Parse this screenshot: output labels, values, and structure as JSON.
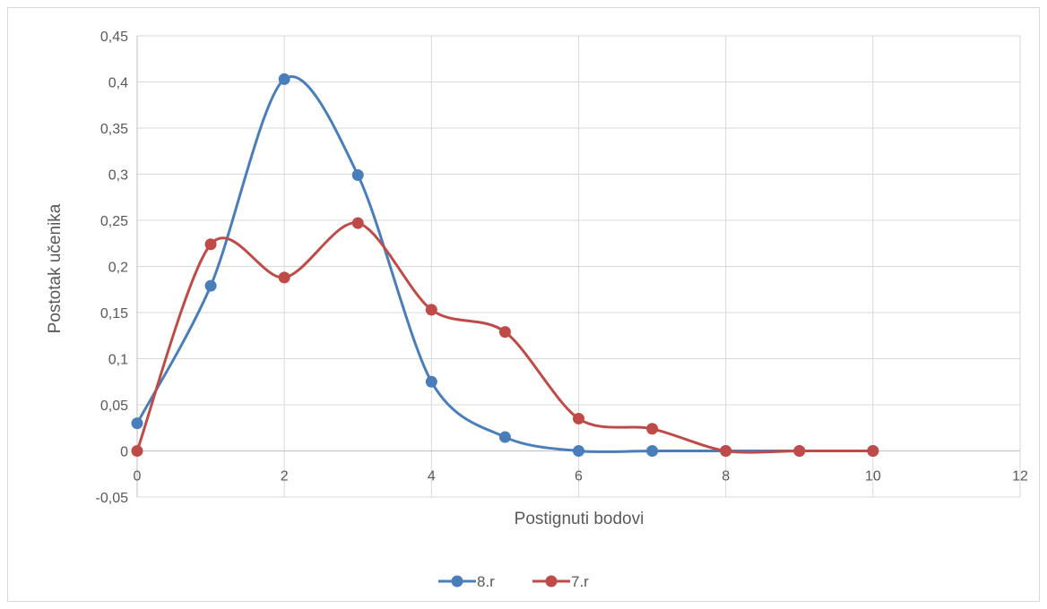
{
  "chart_data": {
    "type": "scatter",
    "subtype": "smooth-line-with-markers",
    "title": "",
    "xlabel": "Postignuti bodovi",
    "ylabel": "Postotak učenika",
    "xlim": [
      0,
      12
    ],
    "ylim": [
      -0.05,
      0.45
    ],
    "x_ticks": [
      0,
      2,
      4,
      6,
      8,
      10,
      12
    ],
    "y_ticks": [
      -0.05,
      0,
      0.05,
      0.1,
      0.15,
      0.2,
      0.25,
      0.3,
      0.35,
      0.4,
      0.45
    ],
    "x_tick_labels": [
      "0",
      "2",
      "4",
      "6",
      "8",
      "10",
      "12"
    ],
    "y_tick_labels": [
      "-0,05",
      "0",
      "0,05",
      "0,1",
      "0,15",
      "0,2",
      "0,25",
      "0,3",
      "0,35",
      "0,4",
      "0,45"
    ],
    "grid": true,
    "legend_position": "bottom",
    "series": [
      {
        "name": "8.r",
        "color": "#4a7ebb",
        "x": [
          0,
          1,
          2,
          3,
          4,
          5,
          6,
          7,
          8,
          9,
          10
        ],
        "y": [
          0.03,
          0.179,
          0.403,
          0.299,
          0.075,
          0.015,
          0,
          0,
          0,
          0,
          0
        ]
      },
      {
        "name": "7.r",
        "color": "#be4b48",
        "x": [
          0,
          1,
          2,
          3,
          4,
          5,
          6,
          7,
          8,
          9,
          10
        ],
        "y": [
          0,
          0.224,
          0.188,
          0.247,
          0.153,
          0.129,
          0.035,
          0.024,
          0,
          0,
          0
        ]
      }
    ]
  }
}
